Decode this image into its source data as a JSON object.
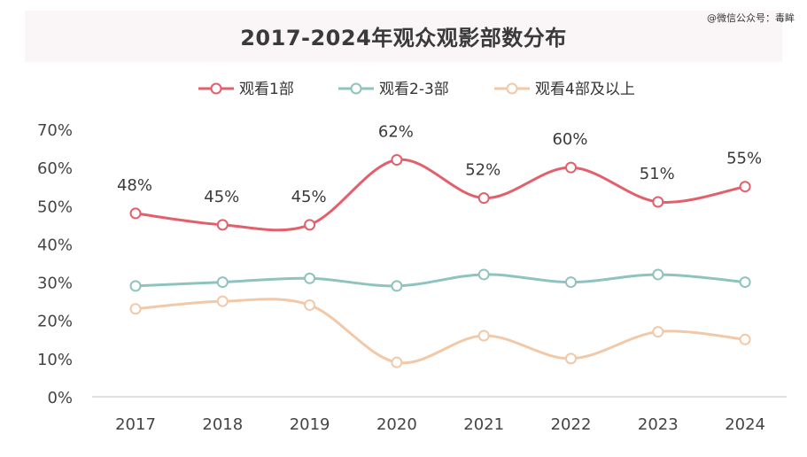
{
  "watermark": "@微信公众号：毒眸",
  "chart_data": {
    "type": "line",
    "title": "2017-2024年观众观影部数分布",
    "xlabel": "",
    "ylabel": "",
    "ylim": [
      0,
      70
    ],
    "y_ticks": [
      "0%",
      "10%",
      "20%",
      "30%",
      "40%",
      "50%",
      "60%",
      "70%"
    ],
    "categories": [
      "2017",
      "2018",
      "2019",
      "2020",
      "2021",
      "2022",
      "2023",
      "2024"
    ],
    "legend_position": "top-center",
    "grid": false,
    "series": [
      {
        "name": "观看1部",
        "values": [
          48,
          45,
          45,
          62,
          52,
          60,
          51,
          55
        ],
        "color": "#e2606b",
        "labels": [
          "48%",
          "45%",
          "45%",
          "62%",
          "52%",
          "60%",
          "51%",
          "55%"
        ]
      },
      {
        "name": "观看2-3部",
        "values": [
          29,
          30,
          31,
          29,
          32,
          30,
          32,
          30
        ],
        "color": "#8fc3bd"
      },
      {
        "name": "观看4部及以上",
        "values": [
          23,
          25,
          24,
          9,
          16,
          10,
          17,
          15
        ],
        "color": "#f2c9a8"
      }
    ]
  }
}
